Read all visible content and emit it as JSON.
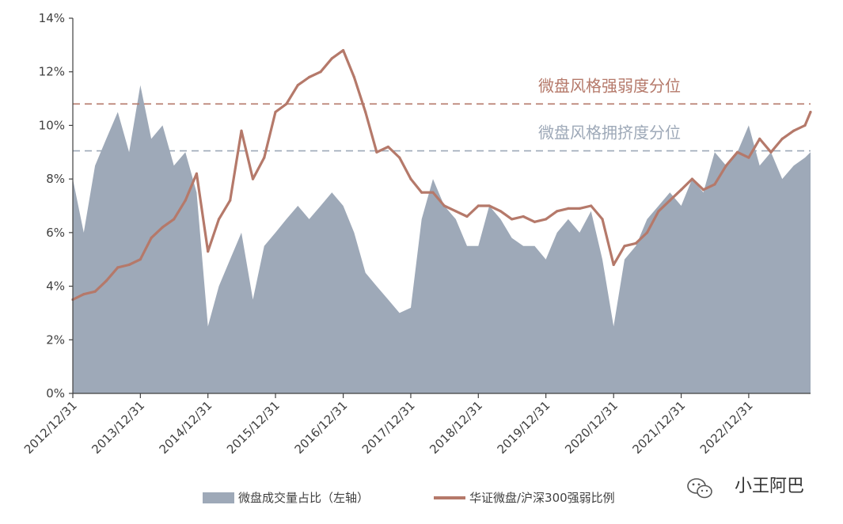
{
  "chart_data": {
    "type": "area+line",
    "title": "",
    "y_axis": {
      "ylim": [
        0,
        14
      ],
      "ticks": [
        0,
        2,
        4,
        6,
        8,
        10,
        12,
        14
      ],
      "tick_labels": [
        "0%",
        "2%",
        "4%",
        "6%",
        "8%",
        "10%",
        "12%",
        "14%"
      ]
    },
    "x_axis": {
      "range": [
        "2012-12-31",
        "2023-11-30"
      ],
      "ticks": [
        "2012/12/31",
        "2013/12/31",
        "2014/12/31",
        "2015/12/31",
        "2016/12/31",
        "2017/12/31",
        "2018/12/31",
        "2019/12/31",
        "2020/12/31",
        "2021/12/31",
        "2022/12/31"
      ]
    },
    "grid": false,
    "legend_position": "bottom",
    "colors": {
      "area": "#9ea9b8",
      "line": "#b5796a",
      "dash_strength": "#b5796a",
      "dash_crowding": "#9ea9b8",
      "axis": "#404040"
    },
    "series": [
      {
        "name": "微盘成交量占比（左轴）",
        "type": "area",
        "x": [
          "2012-12-31",
          "2013-02-28",
          "2013-04-30",
          "2013-06-30",
          "2013-08-31",
          "2013-10-31",
          "2013-12-31",
          "2014-02-28",
          "2014-04-30",
          "2014-06-30",
          "2014-08-31",
          "2014-10-31",
          "2014-12-31",
          "2015-02-28",
          "2015-04-30",
          "2015-06-30",
          "2015-08-31",
          "2015-10-31",
          "2015-12-31",
          "2016-02-28",
          "2016-04-30",
          "2016-06-30",
          "2016-08-31",
          "2016-10-31",
          "2016-12-31",
          "2017-02-28",
          "2017-04-30",
          "2017-06-30",
          "2017-08-31",
          "2017-10-31",
          "2017-12-31",
          "2018-02-28",
          "2018-04-30",
          "2018-06-30",
          "2018-08-31",
          "2018-10-31",
          "2018-12-31",
          "2019-02-28",
          "2019-04-30",
          "2019-06-30",
          "2019-08-31",
          "2019-10-31",
          "2019-12-31",
          "2020-02-29",
          "2020-04-30",
          "2020-06-30",
          "2020-08-31",
          "2020-10-31",
          "2020-12-31",
          "2021-02-28",
          "2021-04-30",
          "2021-06-30",
          "2021-08-31",
          "2021-10-31",
          "2021-12-31",
          "2022-02-28",
          "2022-04-30",
          "2022-06-30",
          "2022-08-31",
          "2022-10-31",
          "2022-12-31",
          "2023-02-28",
          "2023-04-30",
          "2023-06-30",
          "2023-08-31",
          "2023-10-31",
          "2023-11-30"
        ],
        "y": [
          8.0,
          6.0,
          8.5,
          9.5,
          10.5,
          9.0,
          11.5,
          9.5,
          10.0,
          8.5,
          9.0,
          7.5,
          2.5,
          4.0,
          5.0,
          6.0,
          3.5,
          5.5,
          6.0,
          6.5,
          7.0,
          6.5,
          7.0,
          7.5,
          7.0,
          6.0,
          4.5,
          4.0,
          3.5,
          3.0,
          3.2,
          6.5,
          8.0,
          7.0,
          6.5,
          5.5,
          5.5,
          7.0,
          6.5,
          5.8,
          5.5,
          5.5,
          5.0,
          6.0,
          6.5,
          6.0,
          6.8,
          5.0,
          2.5,
          5.0,
          5.5,
          6.5,
          7.0,
          7.5,
          7.0,
          8.0,
          7.5,
          9.0,
          8.5,
          9.0,
          10.0,
          8.5,
          9.0,
          8.0,
          8.5,
          8.8,
          9.0
        ]
      },
      {
        "name": "华证微盘/沪深300强弱比例",
        "type": "line",
        "x": [
          "2012-12-31",
          "2013-02-28",
          "2013-04-30",
          "2013-06-30",
          "2013-08-31",
          "2013-10-31",
          "2013-12-31",
          "2014-02-28",
          "2014-04-30",
          "2014-06-30",
          "2014-08-31",
          "2014-10-31",
          "2014-12-31",
          "2015-02-28",
          "2015-04-30",
          "2015-06-30",
          "2015-08-31",
          "2015-10-31",
          "2015-12-31",
          "2016-02-28",
          "2016-04-30",
          "2016-06-30",
          "2016-08-31",
          "2016-10-31",
          "2016-12-31",
          "2017-02-28",
          "2017-04-30",
          "2017-06-30",
          "2017-08-31",
          "2017-10-31",
          "2017-12-31",
          "2018-02-28",
          "2018-04-30",
          "2018-06-30",
          "2018-08-31",
          "2018-10-31",
          "2018-12-31",
          "2019-02-28",
          "2019-04-30",
          "2019-06-30",
          "2019-08-31",
          "2019-10-31",
          "2019-12-31",
          "2020-02-29",
          "2020-04-30",
          "2020-06-30",
          "2020-08-31",
          "2020-10-31",
          "2020-12-31",
          "2021-02-28",
          "2021-04-30",
          "2021-06-30",
          "2021-08-31",
          "2021-10-31",
          "2021-12-31",
          "2022-02-28",
          "2022-04-30",
          "2022-06-30",
          "2022-08-31",
          "2022-10-31",
          "2022-12-31",
          "2023-02-28",
          "2023-04-30",
          "2023-06-30",
          "2023-08-31",
          "2023-10-31",
          "2023-11-30"
        ],
        "y": [
          3.5,
          3.7,
          3.8,
          4.2,
          4.7,
          4.8,
          5.0,
          5.8,
          6.2,
          6.5,
          7.2,
          8.2,
          5.3,
          6.5,
          7.2,
          9.8,
          8.0,
          8.8,
          10.5,
          10.8,
          11.5,
          11.8,
          12.0,
          12.5,
          12.8,
          11.8,
          10.5,
          9.0,
          9.2,
          8.8,
          8.0,
          7.5,
          7.5,
          7.0,
          6.8,
          6.6,
          7.0,
          7.0,
          6.8,
          6.5,
          6.6,
          6.4,
          6.5,
          6.8,
          6.9,
          6.9,
          7.0,
          6.5,
          4.8,
          5.5,
          5.6,
          6.0,
          6.8,
          7.2,
          7.6,
          8.0,
          7.6,
          7.8,
          8.5,
          9.0,
          8.8,
          9.5,
          9.0,
          9.5,
          9.8,
          10.0,
          10.5
        ]
      }
    ],
    "reference_lines": [
      {
        "label": "微盘风格强弱度分位",
        "y": 10.8,
        "style": "dashed"
      },
      {
        "label": "微盘风格拥挤度分位",
        "y": 9.05,
        "style": "dashed"
      }
    ]
  },
  "watermark": {
    "text": "小王阿巴",
    "icon": "wechat-icon"
  }
}
